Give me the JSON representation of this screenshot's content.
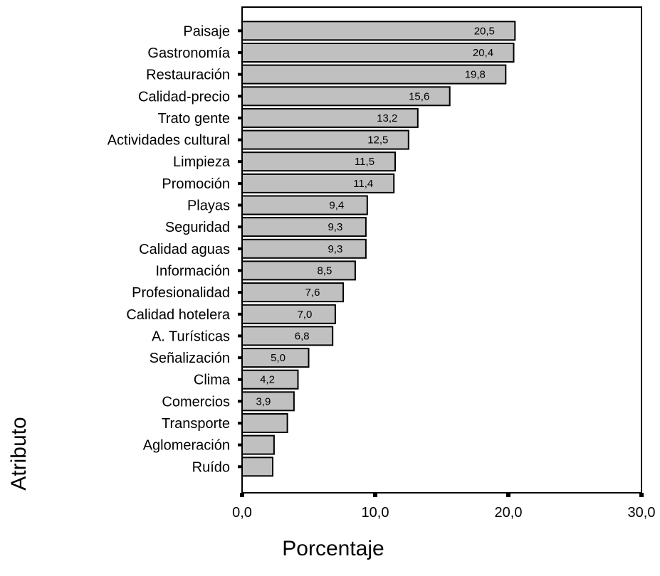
{
  "chart_data": {
    "type": "bar",
    "orientation": "horizontal",
    "title": "",
    "xlabel": "Porcentaje",
    "ylabel": "Atributo",
    "xlim": [
      0,
      30
    ],
    "x_ticks": [
      "0,0",
      "10,0",
      "20,0",
      "30,0"
    ],
    "grid": false,
    "bar_color": "#c0c0c0",
    "bar_edge_color": "#000000",
    "categories": [
      "Paisaje",
      "Gastronomía",
      "Restauración",
      "Calidad-precio",
      "Trato gente",
      "Actividades cultural",
      "Limpieza",
      "Promoción",
      "Playas",
      "Seguridad",
      "Calidad aguas",
      "Información",
      "Profesionalidad",
      "Calidad hotelera",
      "A. Turísticas",
      "Señalización",
      "Clima",
      "Comercios",
      "Transporte",
      "Aglomeración",
      "Ruído"
    ],
    "values": [
      20.5,
      20.4,
      19.8,
      15.6,
      13.2,
      12.5,
      11.5,
      11.4,
      9.4,
      9.3,
      9.3,
      8.5,
      7.6,
      7.0,
      6.8,
      5.0,
      4.2,
      3.9,
      3.4,
      2.4,
      2.3
    ],
    "value_labels": [
      "20,5",
      "20,4",
      "19,8",
      "15,6",
      "13,2",
      "12,5",
      "11,5",
      "11,4",
      "9,4",
      "9,3",
      "9,3",
      "8,5",
      "7,6",
      "7,0",
      "6,8",
      "5,0",
      "4,2",
      "3,9",
      "",
      "",
      ""
    ]
  }
}
